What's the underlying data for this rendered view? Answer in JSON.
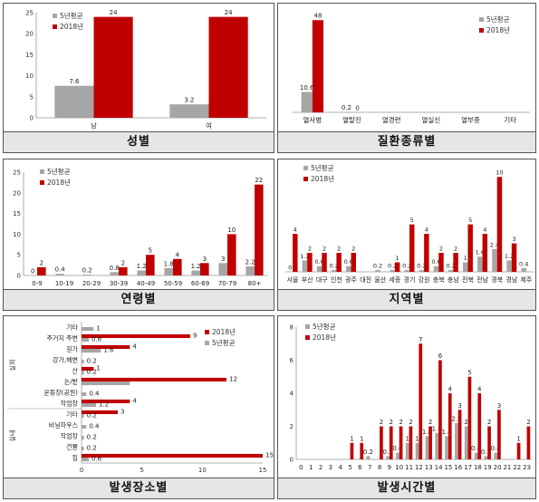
{
  "chart_data": [
    {
      "type": "bar",
      "caption": "성별",
      "categories": [
        "남",
        "여"
      ],
      "series": [
        {
          "name": "5년평균",
          "values": [
            7.6,
            3.2
          ],
          "color": "#a6a6a6"
        },
        {
          "name": "2018년",
          "values": [
            24,
            24
          ],
          "color": "#c00000"
        }
      ],
      "ylim": [
        0,
        25
      ],
      "yticks": [
        "0",
        "5",
        "10",
        "15",
        "20",
        "25"
      ],
      "grid": false,
      "legend": "top-left"
    },
    {
      "type": "bar",
      "caption": "질환종류별",
      "categories": [
        "열사병",
        "열탈진",
        "열경련",
        "열실신",
        "열부종",
        "기타"
      ],
      "series": [
        {
          "name": "5년평균",
          "values": [
            10.6,
            0.2,
            null,
            null,
            null,
            null
          ],
          "labels": [
            "10.6",
            "0.2",
            "",
            "",
            "",
            ""
          ],
          "color": "#a6a6a6"
        },
        {
          "name": "2018년",
          "values": [
            48,
            0,
            null,
            null,
            null,
            null
          ],
          "labels": [
            "48",
            "0",
            "",
            "",
            "",
            ""
          ],
          "color": "#c00000"
        }
      ],
      "legend": "top-right"
    },
    {
      "type": "bar",
      "caption": "연령별",
      "categories": [
        "0-9",
        "10-19",
        "20-29",
        "30-39",
        "40-49",
        "50-59",
        "60-69",
        "70-79",
        "80+"
      ],
      "series": [
        {
          "name": "5년평균",
          "values": [
            0,
            0.4,
            0.2,
            0.8,
            1.2,
            1.8,
            1.2,
            3,
            2.2
          ],
          "labels": [
            "0",
            "0.4",
            "0.2",
            "0.8",
            "1.2",
            "1.8",
            "1.2",
            "3",
            "2.2"
          ],
          "color": "#a6a6a6"
        },
        {
          "name": "2018년",
          "values": [
            2,
            null,
            null,
            2,
            5,
            4,
            3,
            10,
            22
          ],
          "labels": [
            "2",
            "",
            "",
            "2",
            "5",
            "4",
            "3",
            "10",
            "22"
          ],
          "color": "#c00000"
        }
      ],
      "ylim": [
        0,
        25
      ],
      "yticks": [
        "0",
        "5",
        "10",
        "15",
        "20",
        "25"
      ],
      "legend": "top-left"
    },
    {
      "type": "bar",
      "caption": "지역별",
      "categories": [
        "서울",
        "부산",
        "대구",
        "인천",
        "광주",
        "대전",
        "울산",
        "세종",
        "경기",
        "강원",
        "충북",
        "충남",
        "전북",
        "전남",
        "경북",
        "경남",
        "제주"
      ],
      "series": [
        {
          "name": "5년평균",
          "values": [
            0,
            1.2,
            0.6,
            0.2,
            0.6,
            null,
            0.2,
            0.2,
            0.2,
            0.2,
            0.6,
            0.2,
            1,
            1.6,
            2.4,
            1.2,
            0.4
          ],
          "labels": [
            "0",
            "1.2",
            "0.6",
            "0.2",
            "0.6",
            "",
            "0.2",
            "0.2",
            "0.2",
            "0.2",
            "0.6",
            "0.2",
            "1",
            "1.6",
            "2.4",
            "1.2",
            "0.4"
          ],
          "color": "#a6a6a6"
        },
        {
          "name": "2018년",
          "values": [
            4,
            2,
            2,
            2,
            2,
            null,
            null,
            1,
            5,
            4,
            2,
            2,
            5,
            4,
            10,
            3,
            null
          ],
          "labels": [
            "4",
            "2",
            "2",
            "2",
            "2",
            "",
            "",
            "1",
            "5",
            "4",
            "2",
            "2",
            "5",
            "4",
            "10",
            "3",
            ""
          ],
          "color": "#c00000"
        }
      ],
      "legend": "top-left"
    },
    {
      "type": "bar",
      "orientation": "horizontal",
      "caption": "발생장소별",
      "group_labels": [
        "실외",
        "실내"
      ],
      "categories": [
        "기타",
        "주거지 주변",
        "길가",
        "강가,해변",
        "산",
        "논/밭",
        "운동장(공원)",
        "작업장",
        "기타",
        "비닐하우스",
        "작업장",
        "건물",
        "집"
      ],
      "series": [
        {
          "name": "5년평균",
          "values": [
            1,
            0.6,
            1.6,
            0.2,
            0.2,
            4,
            0.4,
            1.2,
            0.2,
            0.4,
            0.2,
            0.2,
            0.6
          ],
          "labels": [
            "1",
            "0.6",
            "1.6",
            "0.2",
            "0.2",
            "",
            "0.4",
            "1.2",
            "0.2",
            "0.4",
            "0.2",
            "0.2",
            "0.6"
          ],
          "color": "#a6a6a6"
        },
        {
          "name": "2018년",
          "values": [
            null,
            9,
            4,
            null,
            1,
            12,
            null,
            4,
            3,
            null,
            null,
            null,
            15
          ],
          "labels": [
            "",
            "9",
            "4",
            "",
            "1",
            "12",
            "",
            "4",
            "3",
            "",
            "",
            "",
            "15"
          ],
          "color": "#c00000"
        }
      ],
      "xlim": [
        0,
        15
      ],
      "xticks": [
        "0",
        "5",
        "10",
        "15"
      ],
      "legend": "top-right"
    },
    {
      "type": "bar",
      "caption": "발생시간별",
      "categories": [
        "0",
        "1",
        "2",
        "3",
        "4",
        "5",
        "6",
        "7",
        "8",
        "9",
        "10",
        "11",
        "12",
        "13",
        "14",
        "15",
        "16",
        "17",
        "18",
        "19",
        "20",
        "21",
        "22",
        "23"
      ],
      "series": [
        {
          "name": "5년평균",
          "values": [
            null,
            null,
            null,
            null,
            null,
            null,
            null,
            0.2,
            null,
            0.2,
            0.4,
            1,
            1,
            1.4,
            1.6,
            1.4,
            2.2,
            2,
            0.4,
            0.2,
            0.4,
            null,
            null,
            null
          ],
          "labels": [
            "",
            "",
            "",
            "",
            "",
            "",
            "",
            "0.2",
            "",
            "0.2",
            "0.4",
            "1",
            "1",
            "1.4",
            "1.6",
            "1.4",
            "2.2",
            "2",
            "0.4",
            "0.2",
            "0.4",
            "",
            "",
            ""
          ],
          "color": "#a6a6a6"
        },
        {
          "name": "2018년",
          "values": [
            null,
            null,
            null,
            null,
            null,
            1,
            1,
            null,
            2,
            2,
            2,
            2,
            7,
            2,
            6,
            4,
            3,
            5,
            4,
            2,
            3,
            null,
            1,
            2
          ],
          "labels": [
            "",
            "",
            "",
            "",
            "",
            "1",
            "1",
            "",
            "2",
            "2",
            "2",
            "2",
            "7",
            "2",
            "6",
            "4",
            "3",
            "5",
            "4",
            "2",
            "3",
            "",
            "1",
            "2"
          ],
          "color": "#c00000"
        }
      ],
      "ylim": [
        0,
        8
      ],
      "yticks": [
        "0",
        "2",
        "4",
        "6",
        "8"
      ],
      "legend": "top-left"
    }
  ]
}
